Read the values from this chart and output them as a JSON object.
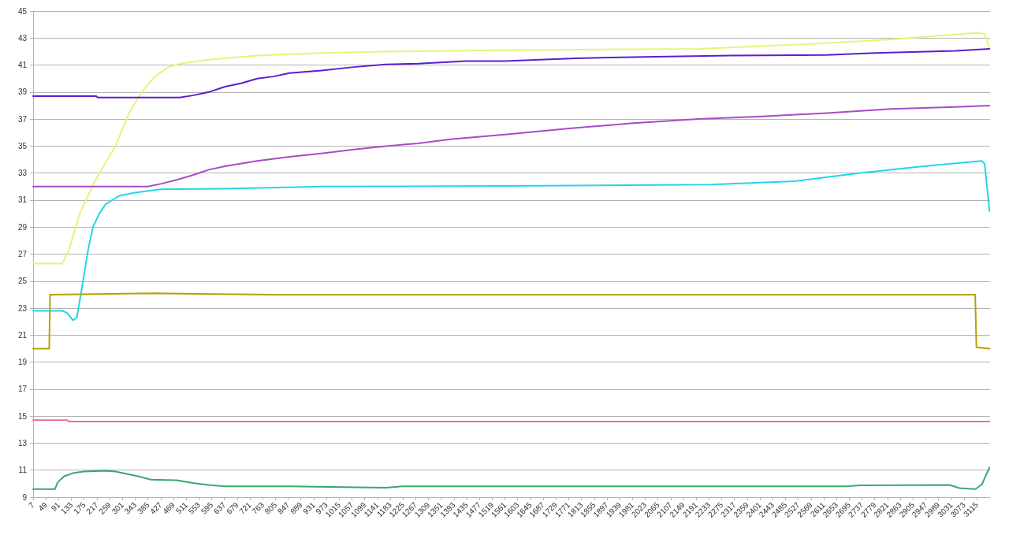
{
  "chart_data": {
    "type": "line",
    "marker": "none",
    "grid": "y",
    "xlim": [
      7,
      3159
    ],
    "ylim": [
      9,
      45
    ],
    "xticks": [
      7,
      49,
      91,
      133,
      175,
      217,
      259,
      301,
      343,
      385,
      427,
      469,
      511,
      553,
      595,
      637,
      679,
      721,
      763,
      805,
      847,
      889,
      931,
      973,
      1015,
      1057,
      1099,
      1141,
      1183,
      1225,
      1267,
      1309,
      1351,
      1393,
      1435,
      1477,
      1519,
      1561,
      1603,
      1645,
      1687,
      1729,
      1771,
      1813,
      1855,
      1897,
      1939,
      1981,
      2023,
      2065,
      2107,
      2149,
      2191,
      2233,
      2275,
      2317,
      2359,
      2401,
      2443,
      2485,
      2527,
      2569,
      2611,
      2653,
      2695,
      2737,
      2779,
      2821,
      2863,
      2905,
      2947,
      2989,
      3031,
      3073,
      3115
    ],
    "yticks": [
      9,
      11,
      13,
      15,
      17,
      19,
      21,
      23,
      25,
      27,
      29,
      31,
      33,
      35,
      37,
      39,
      41,
      43,
      45
    ],
    "series": [
      {
        "color": "#e4f47a",
        "x": [
          7,
          103,
          125,
          162,
          204,
          236,
          278,
          326,
          368,
          406,
          448,
          491,
          586,
          745,
          957,
          1169,
          1551,
          2198,
          2515,
          2834,
          3120,
          3141,
          3157
        ],
        "values": [
          26.3,
          26.3,
          27.3,
          30.1,
          32.1,
          33.4,
          35.0,
          37.6,
          39.1,
          40.1,
          40.8,
          41.1,
          41.4,
          41.7,
          41.9,
          42.0,
          42.1,
          42.2,
          42.5,
          42.9,
          43.4,
          43.3,
          42.3
        ]
      },
      {
        "color": "#5b1fd0",
        "x": [
          7,
          215,
          220,
          490,
          533,
          586,
          639,
          692,
          745,
          798,
          851,
          957,
          1063,
          1169,
          1275,
          1434,
          1561,
          1795,
          2018,
          2304,
          2622,
          2781,
          3046,
          3157
        ],
        "values": [
          38.7,
          38.7,
          38.6,
          38.6,
          38.75,
          39.0,
          39.4,
          39.65,
          40.0,
          40.15,
          40.4,
          40.6,
          40.85,
          41.05,
          41.1,
          41.3,
          41.3,
          41.5,
          41.6,
          41.7,
          41.75,
          41.9,
          42.05,
          42.2
        ]
      },
      {
        "color": "#a94bc6",
        "x": [
          7,
          384,
          427,
          480,
          533,
          586,
          639,
          745,
          851,
          957,
          1063,
          1169,
          1275,
          1381,
          1561,
          1773,
          1986,
          2198,
          2410,
          2622,
          2834,
          3046,
          3157
        ],
        "values": [
          32.0,
          32.0,
          32.2,
          32.5,
          32.85,
          33.25,
          33.5,
          33.9,
          34.2,
          34.45,
          34.75,
          35.0,
          35.2,
          35.5,
          35.85,
          36.3,
          36.7,
          37.0,
          37.2,
          37.45,
          37.75,
          37.9,
          38.0
        ]
      },
      {
        "color": "#25d4ea",
        "x": [
          7,
          103,
          119,
          138,
          151,
          167,
          188,
          204,
          225,
          246,
          289,
          342,
          427,
          639,
          957,
          1561,
          2240,
          2515,
          2727,
          2940,
          3131,
          3141,
          3157
        ],
        "values": [
          22.8,
          22.8,
          22.65,
          22.1,
          22.3,
          24.4,
          27.3,
          29.0,
          30.0,
          30.7,
          31.3,
          31.55,
          31.8,
          31.85,
          32.0,
          32.05,
          32.15,
          32.4,
          33.0,
          33.5,
          33.9,
          33.7,
          30.2
        ]
      },
      {
        "color": "#b8a000",
        "x": [
          7,
          60,
          63,
          400,
          800,
          1200,
          1600,
          2000,
          2400,
          2800,
          3110,
          3114,
          3157
        ],
        "values": [
          20.0,
          20.0,
          24.0,
          24.1,
          24.0,
          24.0,
          24.0,
          24.0,
          24.0,
          24.0,
          24.0,
          20.1,
          20.0
        ]
      },
      {
        "color": "#f07088",
        "x": [
          7,
          120,
          125,
          3157
        ],
        "values": [
          14.7,
          14.7,
          14.6,
          14.6
        ]
      },
      {
        "color": "#3aa86e",
        "x": [
          7,
          79,
          88,
          109,
          141,
          172,
          247,
          279,
          310,
          353,
          395,
          480,
          533,
          586,
          639,
          851,
          1169,
          1222,
          1561,
          2686,
          2729,
          3026,
          3058,
          3111,
          3132,
          3157
        ],
        "values": [
          9.6,
          9.6,
          10.1,
          10.55,
          10.8,
          10.9,
          10.95,
          10.9,
          10.75,
          10.55,
          10.3,
          10.25,
          10.05,
          9.9,
          9.8,
          9.8,
          9.7,
          9.8,
          9.8,
          9.8,
          9.87,
          9.9,
          9.67,
          9.6,
          9.95,
          11.2
        ]
      }
    ]
  }
}
